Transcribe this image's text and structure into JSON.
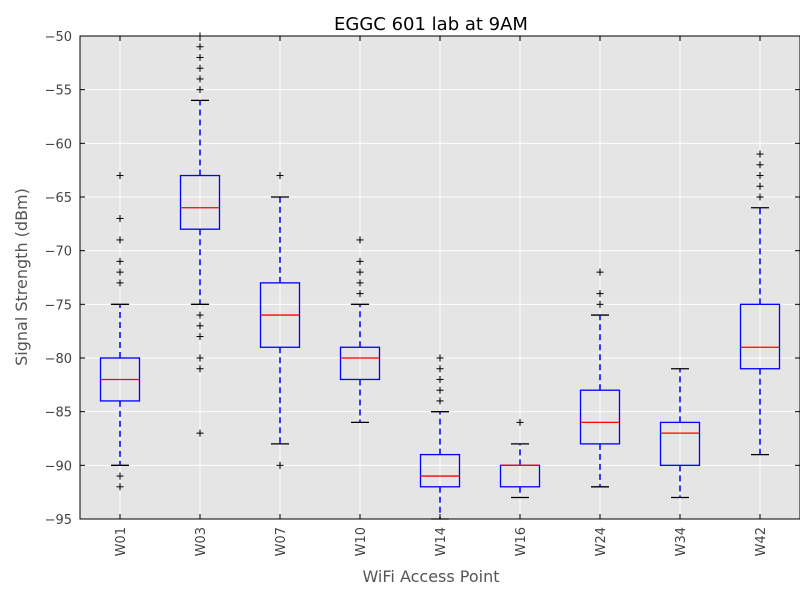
{
  "chart_data": {
    "type": "box",
    "title": "EGGC 601 lab at 9AM",
    "xlabel": "WiFi Access Point",
    "ylabel": "Signal Strength (dBm)",
    "ylim": [
      -95,
      -50
    ],
    "yticks": [
      -95,
      -90,
      -85,
      -80,
      -75,
      -70,
      -65,
      -60,
      -55,
      -50
    ],
    "ytick_labels": [
      "−95",
      "−90",
      "−85",
      "−80",
      "−75",
      "−70",
      "−65",
      "−60",
      "−55",
      "−50"
    ],
    "grid": true,
    "colors": {
      "background": "#e5e5e5",
      "grid": "#ffffff",
      "box": "#0000ff",
      "median": "#ff0000",
      "whisker": "#0000ff",
      "cap": "#000000",
      "outlier": "#000000"
    },
    "categories": [
      "W01",
      "W03",
      "W07",
      "W10",
      "W14",
      "W16",
      "W24",
      "W34",
      "W42"
    ],
    "boxes": [
      {
        "name": "W01",
        "q1": -84,
        "median": -82,
        "q3": -80,
        "whisker_low": -90,
        "whisker_high": -75,
        "outliers": [
          -63,
          -67,
          -69,
          -71,
          -72,
          -73,
          -91,
          -92
        ]
      },
      {
        "name": "W03",
        "q1": -68,
        "median": -66,
        "q3": -63,
        "whisker_low": -75,
        "whisker_high": -56,
        "outliers": [
          -50,
          -51,
          -52,
          -53,
          -54,
          -55,
          -76,
          -77,
          -78,
          -80,
          -81,
          -87
        ]
      },
      {
        "name": "W07",
        "q1": -79,
        "median": -76,
        "q3": -73,
        "whisker_low": -88,
        "whisker_high": -65,
        "outliers": [
          -63,
          -90
        ]
      },
      {
        "name": "W10",
        "q1": -82,
        "median": -80,
        "q3": -79,
        "whisker_low": -86,
        "whisker_high": -75,
        "outliers": [
          -69,
          -71,
          -72,
          -73,
          -74
        ]
      },
      {
        "name": "W14",
        "q1": -92,
        "median": -91,
        "q3": -89,
        "whisker_low": -95,
        "whisker_high": -85,
        "outliers": [
          -80,
          -81,
          -82,
          -83,
          -84
        ]
      },
      {
        "name": "W16",
        "q1": -92,
        "median": -90,
        "q3": -90,
        "whisker_low": -93,
        "whisker_high": -88,
        "outliers": [
          -86
        ]
      },
      {
        "name": "W24",
        "q1": -88,
        "median": -86,
        "q3": -83,
        "whisker_low": -92,
        "whisker_high": -76,
        "outliers": [
          -72,
          -74,
          -75
        ]
      },
      {
        "name": "W34",
        "q1": -90,
        "median": -87,
        "q3": -86,
        "whisker_low": -93,
        "whisker_high": -81,
        "outliers": []
      },
      {
        "name": "W42",
        "q1": -81,
        "median": -79,
        "q3": -75,
        "whisker_low": -89,
        "whisker_high": -66,
        "outliers": [
          -61,
          -62,
          -63,
          -64,
          -65
        ]
      }
    ]
  }
}
